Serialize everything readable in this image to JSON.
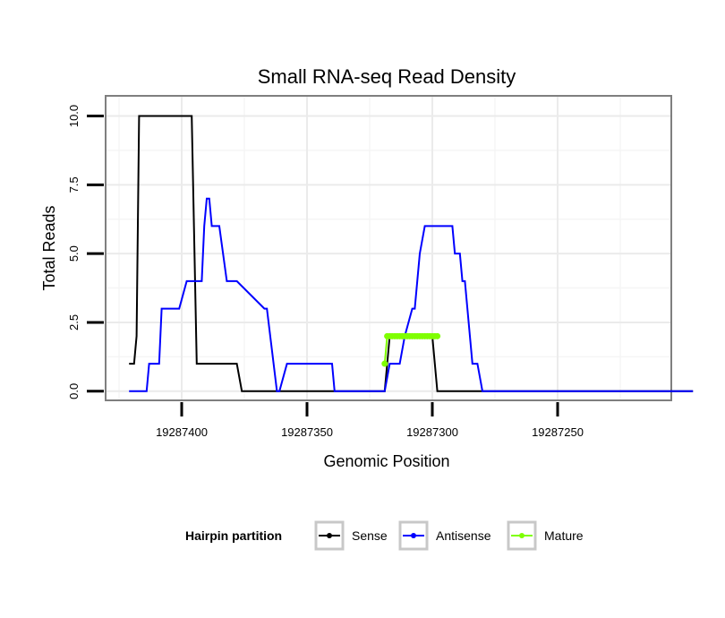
{
  "chart_data": {
    "type": "line",
    "title": "Small RNA-seq Read Density",
    "xlabel": "Genomic Position",
    "ylabel": "Total Reads",
    "x_reversed": true,
    "xlim": [
      19287430,
      19287205
    ],
    "ylim": [
      -0.3,
      10.7
    ],
    "x_ticks": [
      19287400,
      19287350,
      19287300,
      19287250
    ],
    "x_tick_labels": [
      "19287400",
      "19287350",
      "19287300",
      "19287250"
    ],
    "y_ticks": [
      0,
      2.5,
      5,
      7.5,
      10
    ],
    "y_tick_labels": [
      "0.0",
      "2.5",
      "5.0",
      "7.5",
      "10.0"
    ],
    "grid": true,
    "legend": {
      "title": "Hairpin partition",
      "position": "bottom",
      "entries": [
        "Sense",
        "Antisense",
        "Mature"
      ]
    },
    "series": [
      {
        "name": "Sense",
        "color": "#000000",
        "markers": false,
        "x": [
          19287421,
          19287419,
          19287418,
          19287417,
          19287396,
          19287394,
          19287378,
          19287376,
          19287348,
          19287319,
          19287317,
          19287300,
          19287298,
          19287196
        ],
        "y": [
          1,
          1,
          2,
          10,
          10,
          1,
          1,
          0,
          0,
          0,
          2,
          2,
          0,
          0
        ]
      },
      {
        "name": "Antisense",
        "color": "#0000ff",
        "markers": false,
        "x": [
          19287421,
          19287414,
          19287413,
          19287411,
          19287410,
          19287409,
          19287408,
          19287404,
          19287403,
          19287401,
          19287398,
          19287395,
          19287393,
          19287392,
          19287391,
          19287390,
          19287389,
          19287388,
          19287385,
          19287382,
          19287381,
          19287378,
          19287367,
          19287366,
          19287362,
          19287361,
          19287358,
          19287340,
          19287339,
          19287319,
          19287317,
          19287313,
          19287311,
          19287308,
          19287307,
          19287306,
          19287305,
          19287303,
          19287302,
          19287292,
          19287291,
          19287289,
          19287288,
          19287287,
          19287285,
          19287284,
          19287282,
          19287280,
          19287279,
          19287196
        ],
        "y": [
          0,
          0,
          1,
          1,
          1,
          1,
          3,
          3,
          3,
          3,
          4,
          4,
          4,
          4,
          6,
          7,
          7,
          6,
          6,
          4,
          4,
          4,
          3,
          3,
          0,
          0,
          1,
          1,
          0,
          0,
          1,
          1,
          2,
          3,
          3,
          4,
          5,
          6,
          6,
          6,
          5,
          5,
          4,
          4,
          2,
          1,
          1,
          0,
          0,
          0
        ],
        "draw_x": [
          19287421,
          19287414,
          19287413,
          19287411,
          19287410,
          19287409,
          19287408,
          19287404,
          19287403,
          19287401,
          19287398,
          19287395,
          19287393,
          19287392,
          19287391,
          19287390,
          19287389,
          19287388,
          19287385,
          19287382,
          19287381,
          19287378,
          19287367,
          19287366,
          19287362,
          19287361,
          19287358,
          19287340,
          19287339,
          19287319,
          19287317,
          19287313,
          19287311,
          19287308,
          19287307,
          19287306,
          19287305,
          19287303,
          19287302,
          19287292,
          19287291,
          19287289,
          19287288,
          19287287,
          19287285,
          19287284,
          19287282,
          19287280,
          19287279,
          19287196
        ]
      },
      {
        "name": "Mature",
        "color": "#7fff00",
        "markers": true,
        "x": [
          19287319,
          19287318,
          19287317,
          19287316,
          19287315,
          19287314,
          19287313,
          19287312,
          19287311,
          19287310,
          19287309,
          19287308,
          19287307,
          19287306,
          19287305,
          19287304,
          19287303,
          19287302,
          19287301,
          19287300,
          19287299,
          19287298
        ],
        "y": [
          1,
          2,
          2,
          2,
          2,
          2,
          2,
          2,
          2,
          2,
          2,
          2,
          2,
          2,
          2,
          2,
          2,
          2,
          2,
          2,
          2,
          2
        ]
      }
    ]
  }
}
